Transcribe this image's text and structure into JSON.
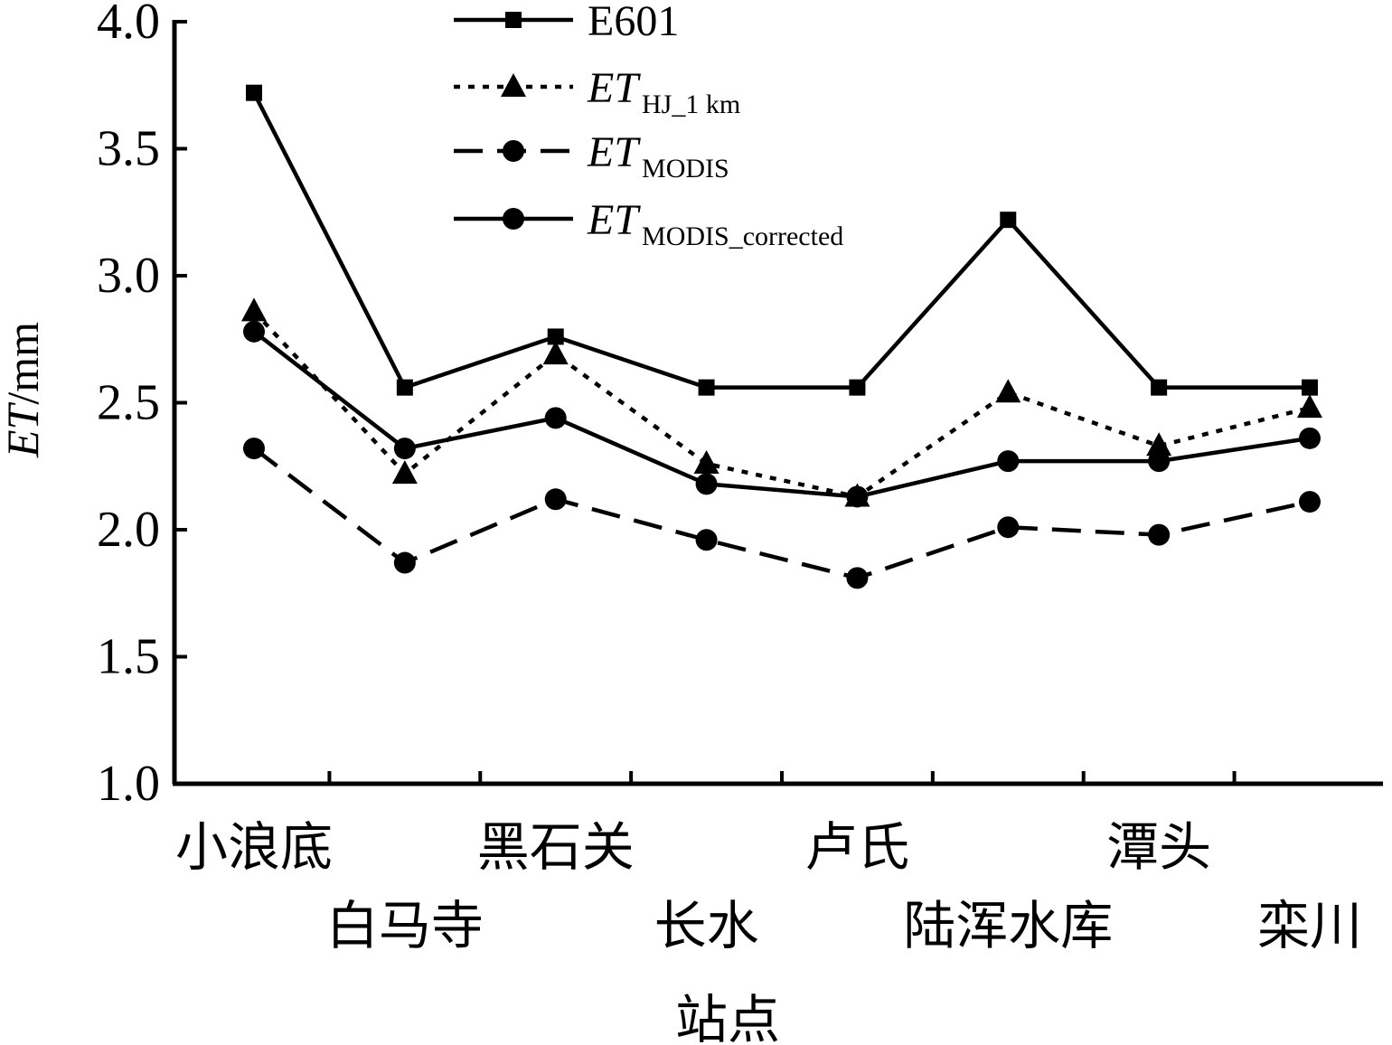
{
  "chart_data": {
    "type": "line",
    "xlabel": "站点",
    "ylabel": {
      "italic": "ET",
      "rest": "/mm"
    },
    "ylim": [
      1.0,
      4.0
    ],
    "yticks": [
      "1.0",
      "1.5",
      "2.0",
      "2.5",
      "3.0",
      "3.5",
      "4.0"
    ],
    "categories": [
      "小浪底",
      "白马寺",
      "黑石关",
      "长水",
      "卢氏",
      "陆浑水库",
      "潭头",
      "栾川"
    ],
    "legend_position": "top",
    "grid": false,
    "series": [
      {
        "name": "E601",
        "name_main": "E601",
        "name_sub": "",
        "line": "solid",
        "marker": "square",
        "values": [
          3.72,
          2.56,
          2.76,
          2.56,
          2.56,
          3.22,
          2.56,
          2.56
        ]
      },
      {
        "name": "ET HJ_1 km",
        "name_main": "ET",
        "name_sub": "HJ_1 km",
        "line": "dotted",
        "marker": "triangle",
        "values": [
          2.86,
          2.22,
          2.69,
          2.26,
          2.13,
          2.54,
          2.33,
          2.48
        ]
      },
      {
        "name": "ET MODIS",
        "name_main": "ET",
        "name_sub": "MODIS",
        "line": "dashed",
        "marker": "circle",
        "values": [
          2.32,
          1.87,
          2.12,
          1.96,
          1.81,
          2.01,
          1.98,
          2.11
        ]
      },
      {
        "name": "ET MODIS_corrected",
        "name_main": "ET",
        "name_sub": "MODIS_corrected",
        "line": "solid",
        "marker": "circle",
        "values": [
          2.78,
          2.32,
          2.44,
          2.18,
          2.13,
          2.27,
          2.27,
          2.36
        ]
      }
    ]
  }
}
